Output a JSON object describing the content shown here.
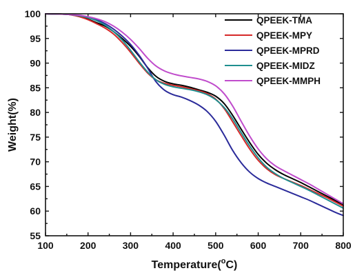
{
  "chart_data": {
    "type": "line",
    "title": "",
    "xlabel": "Temperature(°C)",
    "xlabel_main": "Temperature(",
    "xlabel_deg": "o",
    "xlabel_unit": "C)",
    "ylabel": "Weight(%)",
    "xlim": [
      100,
      800
    ],
    "ylim": [
      55,
      100
    ],
    "xticks": [
      100,
      200,
      300,
      400,
      500,
      600,
      700,
      800
    ],
    "yticks": [
      55,
      60,
      65,
      70,
      75,
      80,
      85,
      90,
      95,
      100
    ],
    "xtick_labels": [
      "100",
      "200",
      "300",
      "400",
      "500",
      "600",
      "700",
      "800"
    ],
    "ytick_labels": [
      "55",
      "60",
      "65",
      "70",
      "75",
      "80",
      "85",
      "90",
      "95",
      "100"
    ],
    "grid": false,
    "legend_position": "top-right",
    "series": [
      {
        "name": "QPEEK-TMA",
        "color": "#000000",
        "points": [
          [
            100,
            100
          ],
          [
            150,
            99.9
          ],
          [
            180,
            99.5
          ],
          [
            200,
            98.9
          ],
          [
            220,
            98.2
          ],
          [
            240,
            97.5
          ],
          [
            260,
            96.4
          ],
          [
            280,
            95
          ],
          [
            300,
            93.4
          ],
          [
            320,
            91.4
          ],
          [
            340,
            89.1
          ],
          [
            360,
            87.3
          ],
          [
            380,
            86.3
          ],
          [
            400,
            85.8
          ],
          [
            420,
            85.5
          ],
          [
            440,
            85.1
          ],
          [
            460,
            84.6
          ],
          [
            480,
            84.1
          ],
          [
            500,
            83.3
          ],
          [
            520,
            81.8
          ],
          [
            540,
            79.4
          ],
          [
            560,
            76.6
          ],
          [
            580,
            73.9
          ],
          [
            600,
            71.5
          ],
          [
            620,
            69.7
          ],
          [
            640,
            68.4
          ],
          [
            660,
            67.4
          ],
          [
            680,
            66.6
          ],
          [
            700,
            65.8
          ],
          [
            720,
            64.9
          ],
          [
            740,
            64
          ],
          [
            760,
            63.1
          ],
          [
            780,
            62.2
          ],
          [
            800,
            61.2
          ]
        ]
      },
      {
        "name": "QPEEK-MPY",
        "color": "#d62728",
        "points": [
          [
            100,
            100
          ],
          [
            150,
            99.9
          ],
          [
            180,
            99.4
          ],
          [
            200,
            98.8
          ],
          [
            220,
            98
          ],
          [
            240,
            97.1
          ],
          [
            260,
            95.9
          ],
          [
            280,
            94.2
          ],
          [
            300,
            92.2
          ],
          [
            320,
            90
          ],
          [
            340,
            88
          ],
          [
            360,
            86.6
          ],
          [
            380,
            85.9
          ],
          [
            400,
            85.5
          ],
          [
            420,
            85.2
          ],
          [
            440,
            84.8
          ],
          [
            460,
            84.4
          ],
          [
            480,
            83.8
          ],
          [
            500,
            82.7
          ],
          [
            520,
            80.8
          ],
          [
            540,
            78.1
          ],
          [
            560,
            75.3
          ],
          [
            580,
            72.6
          ],
          [
            600,
            70.3
          ],
          [
            620,
            68.6
          ],
          [
            640,
            67.4
          ],
          [
            660,
            66.6
          ],
          [
            680,
            65.9
          ],
          [
            700,
            65.2
          ],
          [
            720,
            64.4
          ],
          [
            740,
            63.6
          ],
          [
            760,
            62.8
          ],
          [
            780,
            61.9
          ],
          [
            800,
            61
          ]
        ]
      },
      {
        "name": "QPEEK-MPRD",
        "color": "#2b2b9a",
        "points": [
          [
            100,
            100
          ],
          [
            150,
            99.9
          ],
          [
            180,
            99.6
          ],
          [
            200,
            99.3
          ],
          [
            220,
            98.8
          ],
          [
            240,
            98
          ],
          [
            260,
            96.9
          ],
          [
            280,
            95.5
          ],
          [
            300,
            93.8
          ],
          [
            320,
            91.6
          ],
          [
            340,
            89
          ],
          [
            360,
            86.2
          ],
          [
            380,
            84.5
          ],
          [
            400,
            83.6
          ],
          [
            420,
            83.1
          ],
          [
            440,
            82.4
          ],
          [
            460,
            81.5
          ],
          [
            480,
            80.2
          ],
          [
            500,
            78.2
          ],
          [
            520,
            75.4
          ],
          [
            540,
            72.3
          ],
          [
            560,
            69.8
          ],
          [
            580,
            67.9
          ],
          [
            600,
            66.6
          ],
          [
            620,
            65.7
          ],
          [
            640,
            65
          ],
          [
            660,
            64.3
          ],
          [
            680,
            63.6
          ],
          [
            700,
            62.9
          ],
          [
            720,
            62.2
          ],
          [
            740,
            61.4
          ],
          [
            760,
            60.6
          ],
          [
            780,
            59.8
          ],
          [
            800,
            59.1
          ]
        ]
      },
      {
        "name": "QPEEK-MIDZ",
        "color": "#1f8f8f",
        "points": [
          [
            100,
            100
          ],
          [
            150,
            99.9
          ],
          [
            180,
            99.6
          ],
          [
            200,
            99.2
          ],
          [
            220,
            98.6
          ],
          [
            240,
            97.7
          ],
          [
            260,
            96.4
          ],
          [
            280,
            94.7
          ],
          [
            300,
            92.6
          ],
          [
            320,
            90.3
          ],
          [
            340,
            88.2
          ],
          [
            360,
            86.6
          ],
          [
            380,
            85.7
          ],
          [
            400,
            85.2
          ],
          [
            420,
            84.9
          ],
          [
            440,
            84.6
          ],
          [
            460,
            84.2
          ],
          [
            480,
            83.6
          ],
          [
            500,
            82.6
          ],
          [
            520,
            81
          ],
          [
            540,
            78.7
          ],
          [
            560,
            75.9
          ],
          [
            580,
            73.2
          ],
          [
            600,
            70.8
          ],
          [
            620,
            68.9
          ],
          [
            640,
            67.6
          ],
          [
            660,
            66.6
          ],
          [
            680,
            65.8
          ],
          [
            700,
            65
          ],
          [
            720,
            64.2
          ],
          [
            740,
            63.3
          ],
          [
            760,
            62.4
          ],
          [
            780,
            61.5
          ],
          [
            800,
            60.6
          ]
        ]
      },
      {
        "name": "QPEEK-MMPH",
        "color": "#c04ccc",
        "points": [
          [
            100,
            100
          ],
          [
            150,
            99.9
          ],
          [
            180,
            99.7
          ],
          [
            200,
            99.4
          ],
          [
            220,
            99
          ],
          [
            240,
            98.4
          ],
          [
            260,
            97.5
          ],
          [
            280,
            96.3
          ],
          [
            300,
            94.8
          ],
          [
            320,
            93
          ],
          [
            340,
            91
          ],
          [
            360,
            89.4
          ],
          [
            380,
            88.4
          ],
          [
            400,
            87.8
          ],
          [
            420,
            87.4
          ],
          [
            440,
            87.1
          ],
          [
            460,
            86.8
          ],
          [
            480,
            86.3
          ],
          [
            500,
            85.4
          ],
          [
            520,
            83.8
          ],
          [
            540,
            81.3
          ],
          [
            560,
            78.2
          ],
          [
            580,
            75.2
          ],
          [
            600,
            72.6
          ],
          [
            620,
            70.6
          ],
          [
            640,
            69.2
          ],
          [
            660,
            68.2
          ],
          [
            680,
            67.3
          ],
          [
            700,
            66.4
          ],
          [
            720,
            65.5
          ],
          [
            740,
            64.5
          ],
          [
            760,
            63.5
          ],
          [
            780,
            62.5
          ],
          [
            800,
            61.5
          ]
        ]
      }
    ]
  }
}
